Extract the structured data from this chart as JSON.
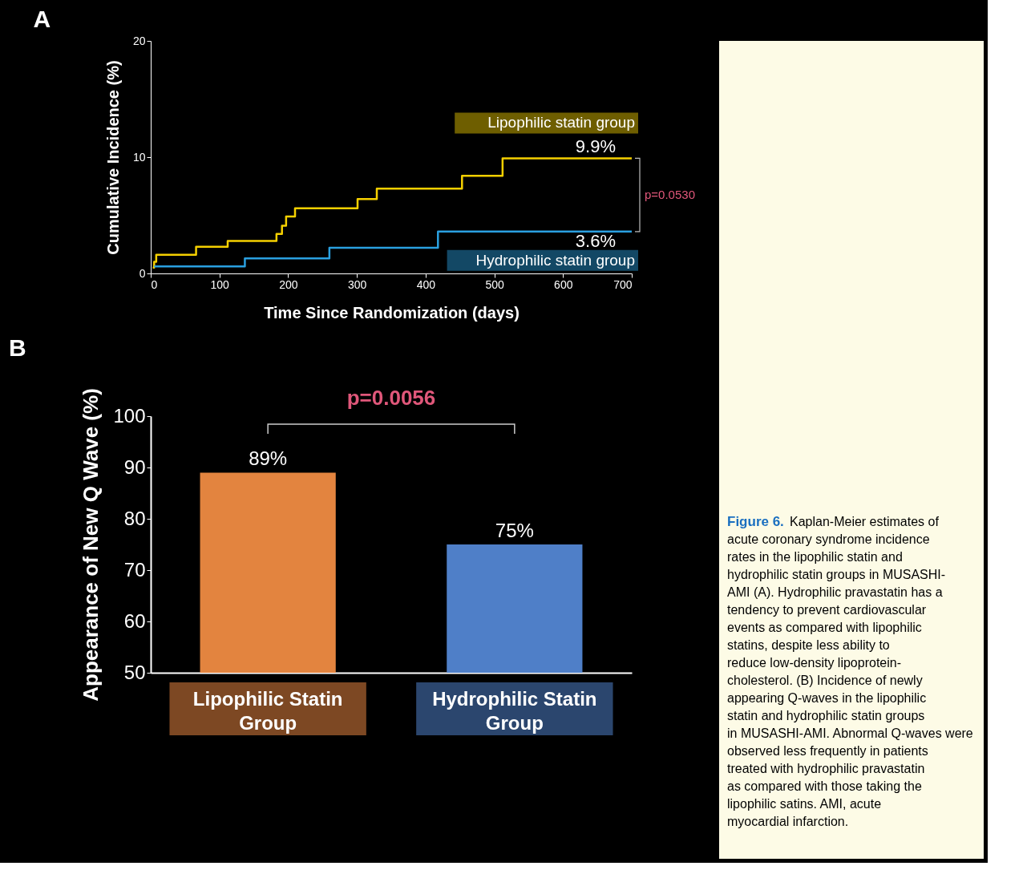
{
  "chart_data": [
    {
      "type": "step",
      "title": "A",
      "xlabel": "Time Since Randomization (days)",
      "ylabel": "Cumulative Incidence (%)",
      "xlim": [
        0,
        700
      ],
      "xticks": [
        0,
        100,
        200,
        300,
        400,
        500,
        600,
        700
      ],
      "ylim": [
        0,
        20
      ],
      "yticks": [
        0,
        10,
        20
      ],
      "grid": false,
      "series": [
        {
          "name": "Lipophilic statin group",
          "color": "#f5d000",
          "x": [
            3,
            5,
            8,
            66,
            112,
            183,
            191,
            197,
            210,
            301,
            329,
            453,
            512,
            700
          ],
          "values": [
            0.5,
            1.0,
            1.6,
            2.3,
            2.8,
            3.4,
            4.1,
            4.9,
            5.6,
            6.4,
            7.3,
            8.4,
            9.9,
            9.9
          ],
          "value_labels": [
            null,
            null,
            null,
            null,
            null,
            null,
            null,
            null,
            null,
            null,
            null,
            null,
            null,
            "9.9%"
          ]
        },
        {
          "name": "Hydrophilic statin group",
          "color": "#2aa0e0",
          "x": [
            5,
            137,
            260,
            418,
            700
          ],
          "values": [
            0.6,
            1.3,
            2.2,
            3.6,
            3.6
          ],
          "value_labels": [
            null,
            null,
            null,
            null,
            "3.6%"
          ]
        }
      ],
      "annotations": [
        "p=0.0530"
      ]
    },
    {
      "type": "bar",
      "title": "B",
      "ylabel": "Appearance of New Q Wave  (%)",
      "categories": [
        "Lipophilic Statin Group",
        "Hydrophilic Statin Group"
      ],
      "values": [
        89,
        75
      ],
      "colors": [
        "#e3843f",
        "#4f7fc8"
      ],
      "value_labels": [
        "89%",
        "75%"
      ],
      "ylim": [
        50,
        100
      ],
      "yticks": [
        50,
        60,
        70,
        80,
        90,
        100
      ],
      "grid": false,
      "annotations": [
        "p=0.0056"
      ]
    },
    {
      "type": "other",
      "title": "Figure 6.",
      "annotations": [
        "Kaplan-Meier estimates of acute coronary syndrome incidence rates in the lipophilic statin and hydrophilic statin groups in MUSASHI-AMI (A). Hydrophilic pravastatin has a tendency to prevent cardiovascular events as compared with lipophilic statins, despite less ability to reduce low-density lipoprotein-cholesterol. (B) Incidence of newly appearing Q-waves in the lipophilic statin and hydrophilic statin groups in MUSASHI-AMI. Abnormal Q-waves were observed less frequently in patients treated with hydrophilic pravastatin as compared with those taking the lipophilic satins. AMI, acute myocardial infarction."
      ]
    }
  ]
}
